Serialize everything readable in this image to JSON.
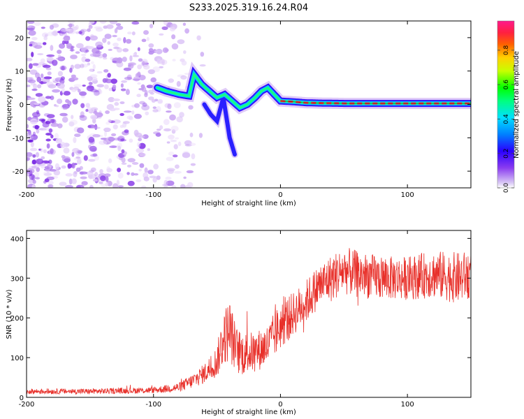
{
  "title": "S233.2025.319.16.24.R04",
  "chart_data": [
    {
      "type": "heatmap",
      "title": "S233.2025.319.16.24.R04",
      "xlabel": "Height of straight line (km)",
      "ylabel": "Frequency (Hz)",
      "xlim": [
        -200,
        150
      ],
      "ylim": [
        -25,
        25
      ],
      "xticks": [
        -200,
        -100,
        0,
        100
      ],
      "yticks": [
        -20,
        -10,
        0,
        10,
        20
      ],
      "colorbar": {
        "label": "Normalized spectral amplitude",
        "range": [
          0,
          0.97
        ],
        "ticks": [
          0.0,
          0.2,
          0.4,
          0.6,
          0.8
        ],
        "colors": [
          "#e6d4f7",
          "#9b45f0",
          "#3b00ff",
          "#0044ff",
          "#00bfff",
          "#00ffc0",
          "#00ff00",
          "#a0ff00",
          "#ffff00",
          "#ffa000",
          "#ff3030",
          "#ff1a8c"
        ]
      },
      "ridge": {
        "x": [
          -97,
          -90,
          -80,
          -72,
          -68,
          -62,
          -56,
          -50,
          -44,
          -38,
          -32,
          -26,
          -20,
          -15,
          -10,
          -5,
          0,
          10,
          20,
          30,
          50,
          80,
          110,
          150
        ],
        "y": [
          5,
          4,
          3,
          2.5,
          9,
          6,
          4,
          2,
          3,
          1,
          -1,
          0,
          2,
          4,
          5,
          3,
          1,
          0.8,
          0.5,
          0.4,
          0.3,
          0.3,
          0.3,
          0.3
        ]
      },
      "secondary_branch": {
        "x": [
          -60,
          -55,
          -50,
          -45,
          -40,
          -36
        ],
        "y": [
          0,
          -3,
          -5,
          2,
          -10,
          -15
        ]
      },
      "noise_region_x": [
        -200,
        -75
      ]
    },
    {
      "type": "line",
      "xlabel": "Height of straight line (km)",
      "ylabel": "SNR (10 * v/v)",
      "xlim": [
        -200,
        150
      ],
      "ylim": [
        0,
        420
      ],
      "xticks": [
        -200,
        -100,
        0,
        100
      ],
      "yticks": [
        0,
        100,
        200,
        300,
        400
      ],
      "color": "#e8302a",
      "envelope": {
        "x": [
          -200,
          -150,
          -100,
          -80,
          -70,
          -60,
          -50,
          -45,
          -40,
          -35,
          -30,
          -20,
          -10,
          0,
          10,
          20,
          30,
          40,
          50,
          60,
          80,
          100,
          120,
          140,
          150
        ],
        "mean": [
          15,
          15,
          18,
          25,
          40,
          60,
          90,
          150,
          170,
          120,
          110,
          115,
          130,
          180,
          210,
          240,
          280,
          300,
          320,
          310,
          300,
          300,
          310,
          300,
          310
        ],
        "spread": [
          7,
          7,
          8,
          12,
          18,
          25,
          40,
          70,
          80,
          60,
          55,
          50,
          55,
          60,
          55,
          55,
          55,
          60,
          60,
          60,
          55,
          55,
          60,
          65,
          60
        ]
      }
    }
  ]
}
